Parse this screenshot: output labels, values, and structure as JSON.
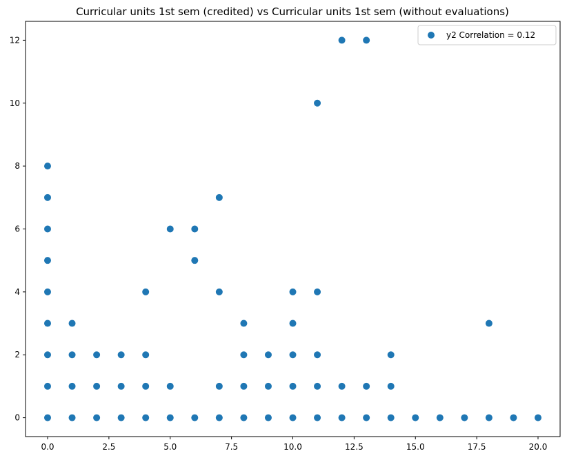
{
  "chart_data": {
    "type": "scatter",
    "title": "Curricular units 1st sem (credited) vs Curricular units 1st sem (without evaluations)",
    "xlabel": "",
    "ylabel": "",
    "xlim": [
      -0.9,
      20.9
    ],
    "ylim": [
      -0.6,
      12.6
    ],
    "x_ticks": [
      0,
      2.5,
      5,
      7.5,
      10,
      12.5,
      15,
      17.5,
      20
    ],
    "x_tick_labels": [
      "0.0",
      "2.5",
      "5.0",
      "7.5",
      "10.0",
      "12.5",
      "15.0",
      "17.5",
      "20.0"
    ],
    "y_ticks": [
      0,
      2,
      4,
      6,
      8,
      10,
      12
    ],
    "y_tick_labels": [
      "0",
      "2",
      "4",
      "6",
      "8",
      "10",
      "12"
    ],
    "grid": false,
    "legend_position": "top-right",
    "series": [
      {
        "name": "y2 Correlation = 0.12",
        "color": "#1f77b4",
        "points": [
          [
            0,
            0
          ],
          [
            0,
            1
          ],
          [
            0,
            2
          ],
          [
            0,
            3
          ],
          [
            0,
            4
          ],
          [
            0,
            5
          ],
          [
            0,
            6
          ],
          [
            0,
            7
          ],
          [
            0,
            8
          ],
          [
            1,
            0
          ],
          [
            1,
            1
          ],
          [
            1,
            2
          ],
          [
            1,
            3
          ],
          [
            2,
            0
          ],
          [
            2,
            1
          ],
          [
            2,
            2
          ],
          [
            3,
            0
          ],
          [
            3,
            1
          ],
          [
            3,
            2
          ],
          [
            4,
            0
          ],
          [
            4,
            1
          ],
          [
            4,
            2
          ],
          [
            4,
            4
          ],
          [
            5,
            0
          ],
          [
            5,
            1
          ],
          [
            5,
            6
          ],
          [
            6,
            0
          ],
          [
            6,
            5
          ],
          [
            6,
            6
          ],
          [
            7,
            0
          ],
          [
            7,
            1
          ],
          [
            7,
            4
          ],
          [
            7,
            7
          ],
          [
            8,
            0
          ],
          [
            8,
            1
          ],
          [
            8,
            2
          ],
          [
            8,
            3
          ],
          [
            9,
            0
          ],
          [
            9,
            1
          ],
          [
            9,
            2
          ],
          [
            10,
            0
          ],
          [
            10,
            1
          ],
          [
            10,
            2
          ],
          [
            10,
            3
          ],
          [
            10,
            4
          ],
          [
            11,
            0
          ],
          [
            11,
            1
          ],
          [
            11,
            2
          ],
          [
            11,
            4
          ],
          [
            11,
            10
          ],
          [
            12,
            0
          ],
          [
            12,
            1
          ],
          [
            12,
            12
          ],
          [
            13,
            0
          ],
          [
            13,
            1
          ],
          [
            13,
            12
          ],
          [
            14,
            0
          ],
          [
            14,
            1
          ],
          [
            14,
            2
          ],
          [
            15,
            0
          ],
          [
            16,
            0
          ],
          [
            17,
            0
          ],
          [
            18,
            0
          ],
          [
            18,
            3
          ],
          [
            19,
            0
          ],
          [
            20,
            0
          ]
        ]
      }
    ]
  }
}
